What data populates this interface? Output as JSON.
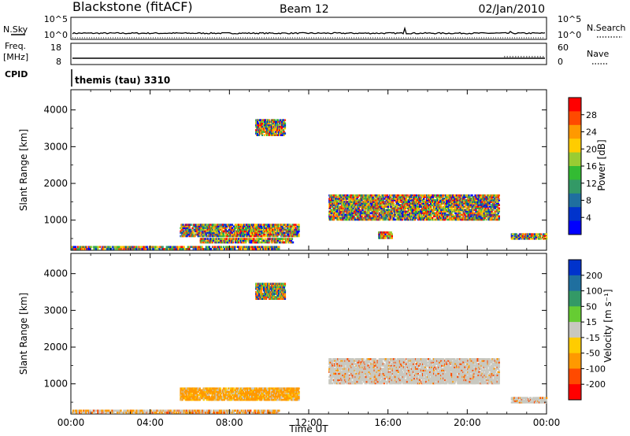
{
  "header": {
    "title": "Blackstone (fitACF)",
    "beam": "Beam 12",
    "date": "02/Jan/2010"
  },
  "top_panels": {
    "nsky_label": "N.Sky",
    "nsky_ticks": [
      "10^5",
      "10^0"
    ],
    "nsearch_label": "N.Search",
    "nsearch_ticks": [
      "10^5",
      "10^0"
    ],
    "freq_label_1": "Freq.",
    "freq_label_2": "[MHz]",
    "freq_ticks": [
      "18",
      "8"
    ],
    "nave_label": "Nave",
    "nave_ticks": [
      "60",
      "0"
    ],
    "cpid_label": "CPID",
    "cpid_text": "themis (tau) 3310"
  },
  "colorbars": {
    "power": {
      "label": "Power [dB]",
      "ticks": [
        "28",
        "24",
        "20",
        "16",
        "12",
        "8",
        "4"
      ],
      "colors": [
        "#ff0000",
        "#ff4a00",
        "#ff9900",
        "#ffcc00",
        "#99cc33",
        "#33bb33",
        "#339966",
        "#1f6f9f",
        "#0033cc",
        "#0000ff"
      ]
    },
    "velocity": {
      "label": "Velocity [m s⁻¹]",
      "ticks": [
        "200",
        "100",
        "50",
        "15",
        "-15",
        "-50",
        "-100",
        "-200"
      ],
      "colors": [
        "#0033cc",
        "#1f6f9f",
        "#339966",
        "#66cc33",
        "#c8c8c0",
        "#ffcc00",
        "#ff9900",
        "#ff4a00",
        "#ff0000"
      ]
    }
  },
  "chart_data": [
    {
      "type": "heatmap",
      "title": "Power",
      "xlabel": "",
      "ylabel": "Slant Range [km]",
      "xlim": [
        0,
        24
      ],
      "ylim": [
        180,
        4550
      ],
      "x_ticks": [
        "00:00",
        "04:00",
        "08:00",
        "12:00",
        "16:00",
        "20:00",
        "00:00"
      ],
      "y_ticks": [
        1000,
        2000,
        3000,
        4000
      ],
      "regions": [
        {
          "t0": 0.0,
          "t1": 10.5,
          "r0": 200,
          "r1": 310,
          "level": "mixed-high"
        },
        {
          "t0": 5.5,
          "t1": 11.5,
          "r0": 550,
          "r1": 900,
          "level": "mixed-mid"
        },
        {
          "t0": 6.5,
          "t1": 11.2,
          "r0": 380,
          "r1": 520,
          "level": "mixed-low"
        },
        {
          "t0": 9.3,
          "t1": 10.8,
          "r0": 3300,
          "r1": 3750,
          "level": "mixed-mid"
        },
        {
          "t0": 13.0,
          "t1": 21.6,
          "r0": 1000,
          "r1": 1700,
          "level": "mixed-high"
        },
        {
          "t0": 22.2,
          "t1": 24.0,
          "r0": 480,
          "r1": 640,
          "level": "mixed-high"
        },
        {
          "t0": 15.5,
          "t1": 16.2,
          "r0": 500,
          "r1": 700,
          "level": "mixed-mid"
        }
      ]
    },
    {
      "type": "heatmap",
      "title": "Velocity",
      "xlabel": "Time UT",
      "ylabel": "Slant Range [km]",
      "xlim": [
        0,
        24
      ],
      "ylim": [
        180,
        4550
      ],
      "x_ticks": [
        "00:00",
        "04:00",
        "08:00",
        "12:00",
        "16:00",
        "20:00",
        "00:00"
      ],
      "y_ticks": [
        1000,
        2000,
        3000,
        4000
      ],
      "regions": [
        {
          "t0": 0.0,
          "t1": 10.5,
          "r0": 200,
          "r1": 310,
          "level": "gray-orange"
        },
        {
          "t0": 5.5,
          "t1": 11.5,
          "r0": 550,
          "r1": 900,
          "level": "orange"
        },
        {
          "t0": 9.3,
          "t1": 10.8,
          "r0": 3300,
          "r1": 3750,
          "level": "mixed"
        },
        {
          "t0": 13.0,
          "t1": 21.6,
          "r0": 1000,
          "r1": 1700,
          "level": "gray"
        },
        {
          "t0": 22.2,
          "t1": 24.0,
          "r0": 480,
          "r1": 640,
          "level": "gray"
        }
      ]
    }
  ]
}
